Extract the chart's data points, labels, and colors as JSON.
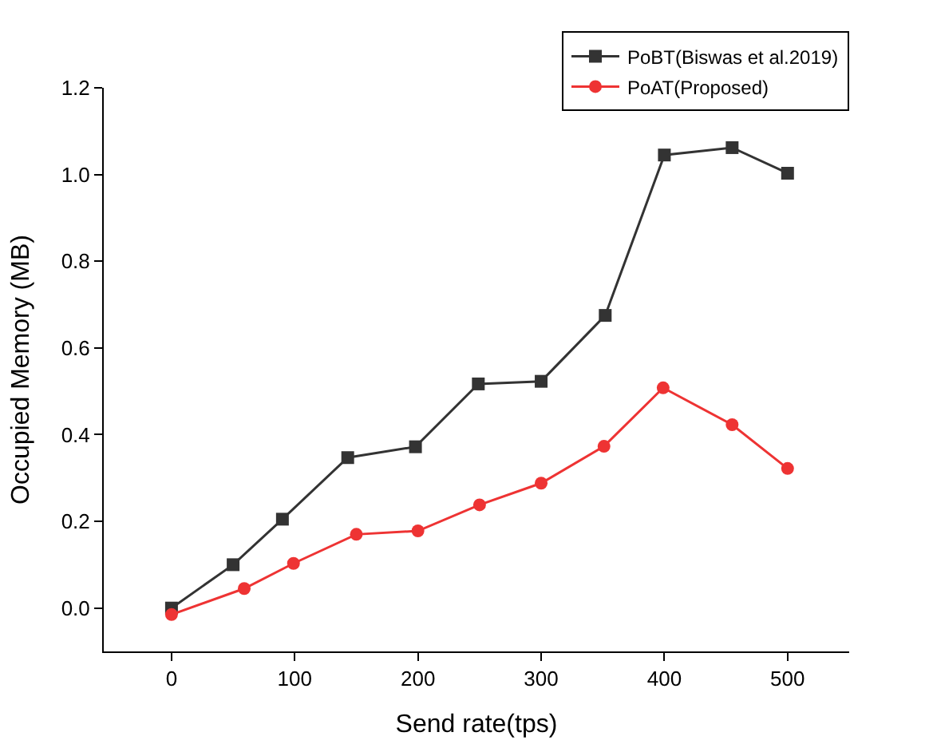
{
  "chart_data": {
    "type": "line",
    "xlabel": "Send rate(tps)",
    "ylabel": "Occupied Memory (MB)",
    "xlim": [
      -55,
      550
    ],
    "xticks": [
      0,
      100,
      200,
      300,
      400,
      500
    ],
    "ylim": [
      -0.1,
      1.2
    ],
    "yticks": [
      {
        "value": 0,
        "label": "0.0"
      },
      0.2,
      0.4,
      0.6,
      0.8,
      {
        "value": 1,
        "label": "1.0"
      },
      1.2
    ],
    "legend": "top right",
    "series": [
      {
        "name": "PoBT(Biswas et al.2019)",
        "color": "#333333",
        "marker": "square",
        "x": [
          0,
          50,
          90,
          143,
          198,
          249,
          300,
          352,
          400,
          455,
          500
        ],
        "values": [
          0.0,
          0.1,
          0.205,
          0.347,
          0.372,
          0.517,
          0.523,
          0.675,
          1.045,
          1.062,
          1.003
        ]
      },
      {
        "name": "PoAT(Proposed)",
        "color": "#ee3333",
        "marker": "circle",
        "x": [
          0,
          59,
          99,
          150,
          200,
          250,
          300,
          351,
          399,
          455,
          500
        ],
        "values": [
          -0.015,
          0.045,
          0.103,
          0.17,
          0.178,
          0.238,
          0.288,
          0.373,
          0.508,
          0.423,
          0.322
        ]
      }
    ]
  }
}
